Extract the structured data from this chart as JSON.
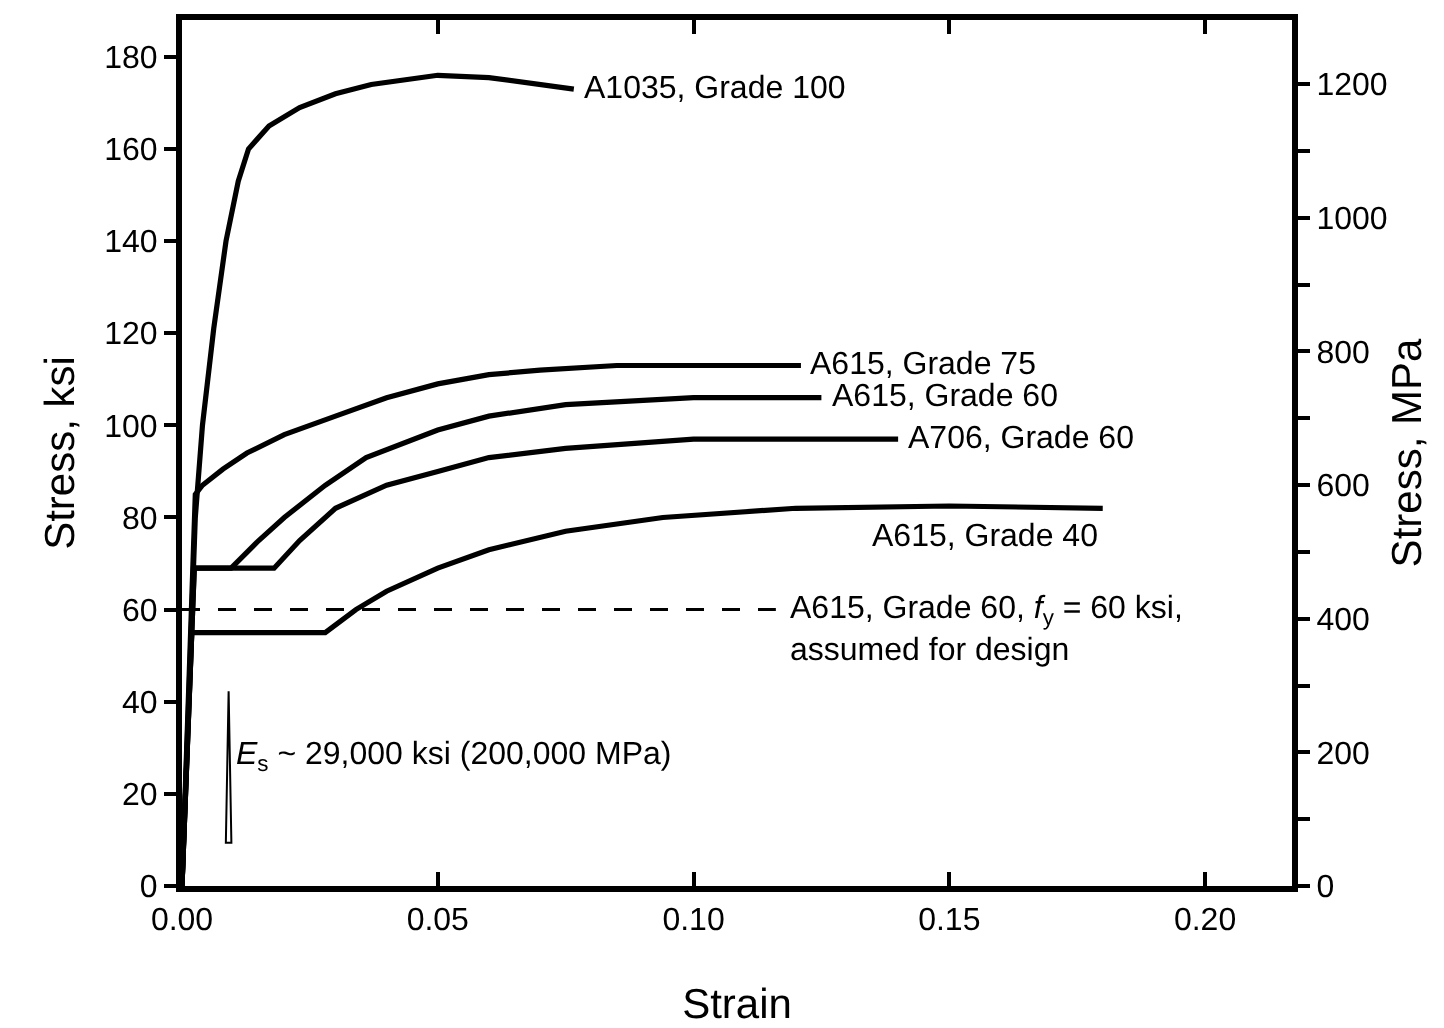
{
  "chart_data": {
    "type": "line",
    "xlabel": "Strain",
    "ylabel": "Stress, ksi",
    "y2label": "Stress, MPa",
    "xlim": [
      0,
      0.217
    ],
    "xticks": [
      {
        "value": 0,
        "label": "0.00"
      },
      0.05,
      {
        "value": 0.1,
        "label": "0.10"
      },
      0.15,
      {
        "value": 0.2,
        "label": "0.20"
      }
    ],
    "ylim": [
      0,
      188
    ],
    "yticks": [
      0,
      20,
      40,
      60,
      80,
      100,
      120,
      140,
      160,
      180
    ],
    "y2lim": [
      0,
      1296
    ],
    "y2ticks": [
      0,
      {
        "value": 100,
        "label": null
      },
      200,
      {
        "value": 300,
        "label": null
      },
      400,
      {
        "value": 500,
        "label": null
      },
      600,
      {
        "value": 700,
        "label": null
      },
      800,
      {
        "value": 900,
        "label": null
      },
      1000,
      {
        "value": 1100,
        "label": null
      },
      1200
    ],
    "grid": false,
    "marker": "none",
    "line_style": "solid",
    "series": [
      {
        "name": "A1035, Grade 100",
        "color": "#000000",
        "x": [
          0,
          0.0026,
          0.004,
          0.0062,
          0.0086,
          0.011,
          0.013,
          0.017,
          0.023,
          0.03,
          0.037,
          0.05,
          0.06,
          0.0766
        ],
        "values": [
          0,
          80,
          100,
          121,
          140,
          153,
          160,
          165,
          169,
          172,
          174,
          176,
          175.5,
          173
        ]
      },
      {
        "name": "A615, Grade 75",
        "color": "#000000",
        "x": [
          0,
          0.0026,
          0.004,
          0.008,
          0.0127,
          0.02,
          0.03,
          0.04,
          0.05,
          0.06,
          0.07,
          0.085,
          0.1,
          0.121
        ],
        "values": [
          0,
          85,
          87,
          90.5,
          94,
          98,
          102,
          106,
          109,
          111,
          112,
          113,
          113,
          113
        ]
      },
      {
        "name": "A615, Grade 60",
        "color": "#000000",
        "x": [
          0,
          0.0024,
          0.0096,
          0.015,
          0.02,
          0.028,
          0.036,
          0.05,
          0.06,
          0.075,
          0.1,
          0.125
        ],
        "values": [
          0,
          69,
          69,
          75,
          80,
          87,
          93,
          99,
          102,
          104.5,
          106,
          106
        ]
      },
      {
        "name": "A706, Grade 60",
        "color": "#000000",
        "x": [
          0,
          0.0024,
          0.018,
          0.023,
          0.03,
          0.04,
          0.05,
          0.06,
          0.075,
          0.1,
          0.14
        ],
        "values": [
          0,
          69,
          69,
          75,
          82,
          87,
          90,
          93,
          95,
          97,
          97
        ]
      },
      {
        "name": "A615, Grade 40",
        "color": "#000000",
        "x": [
          0,
          0.0019,
          0.028,
          0.034,
          0.04,
          0.05,
          0.06,
          0.075,
          0.094,
          0.12,
          0.15,
          0.18
        ],
        "values": [
          0,
          55,
          55,
          60,
          64,
          69,
          73,
          77,
          80,
          82,
          82.5,
          82
        ]
      }
    ],
    "ref_lines": [
      {
        "axis": "y",
        "value": 60,
        "label": "A615, Grade 60, f$_{y}$ = 60 ksi, assumed for design",
        "color": "#000000",
        "line_style": "dashed"
      }
    ],
    "annotations": [
      "E$_{s}$ ~ 29,000 ksi (200,000 MPa)"
    ]
  }
}
